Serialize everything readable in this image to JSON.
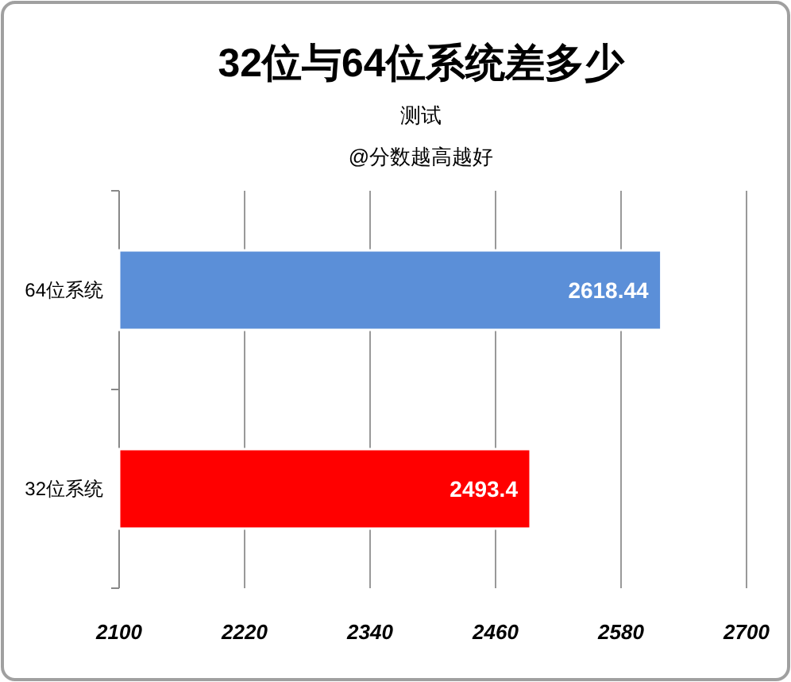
{
  "chart_data": {
    "type": "bar",
    "orientation": "horizontal",
    "title": "32位与64位系统差多少",
    "subtitle": "测试",
    "annotations": [
      "@分数越高越好"
    ],
    "categories": [
      "64位系统",
      "32位系统"
    ],
    "values": [
      2618.44,
      2493.4
    ],
    "colors": [
      "#5b8fd8",
      "#ff0000"
    ],
    "xlim": [
      2100,
      2700
    ],
    "xticks": [
      2100,
      2220,
      2340,
      2460,
      2580,
      2700
    ],
    "grid": "x",
    "data_labels": true
  }
}
